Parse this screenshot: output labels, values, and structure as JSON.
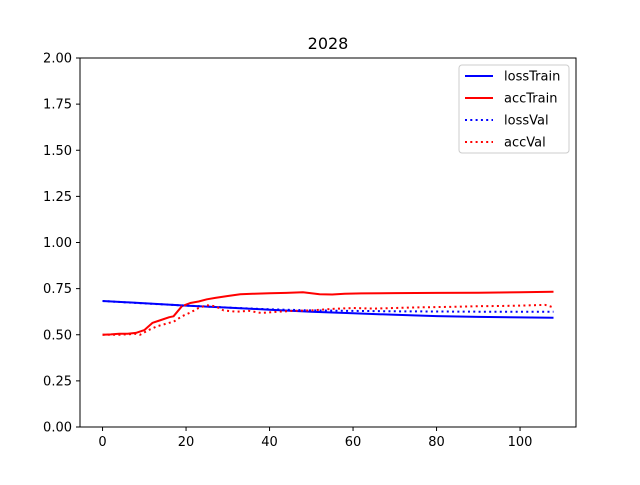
{
  "chart_data": {
    "type": "line",
    "title": "2028",
    "xlabel": "",
    "ylabel": "",
    "xlim": [
      -5.4,
      113.4
    ],
    "ylim": [
      0,
      2.0
    ],
    "x_ticks": [
      "0",
      "20",
      "40",
      "60",
      "80",
      "100"
    ],
    "x_tick_values": [
      0,
      20,
      40,
      60,
      80,
      100
    ],
    "y_ticks": [
      "0.00",
      "0.25",
      "0.50",
      "0.75",
      "1.00",
      "1.25",
      "1.50",
      "1.75",
      "2.00"
    ],
    "y_tick_values": [
      0,
      0.25,
      0.5,
      0.75,
      1.0,
      1.25,
      1.5,
      1.75,
      2.0
    ],
    "grid": false,
    "legend_position": "top-right",
    "series": [
      {
        "name": "lossTrain",
        "color": "#0000ff",
        "style": "solid",
        "points": [
          [
            0,
            0.683
          ],
          [
            10,
            0.671
          ],
          [
            20,
            0.658
          ],
          [
            30,
            0.647
          ],
          [
            40,
            0.636
          ],
          [
            50,
            0.625
          ],
          [
            60,
            0.616
          ],
          [
            70,
            0.608
          ],
          [
            80,
            0.601
          ],
          [
            90,
            0.597
          ],
          [
            100,
            0.594
          ],
          [
            108,
            0.592
          ]
        ]
      },
      {
        "name": "accTrain",
        "color": "#ff0000",
        "style": "solid",
        "points": [
          [
            0,
            0.5
          ],
          [
            2,
            0.502
          ],
          [
            4,
            0.505
          ],
          [
            6,
            0.505
          ],
          [
            8,
            0.51
          ],
          [
            10,
            0.525
          ],
          [
            12,
            0.565
          ],
          [
            14,
            0.58
          ],
          [
            16,
            0.595
          ],
          [
            17,
            0.6
          ],
          [
            19,
            0.655
          ],
          [
            21,
            0.672
          ],
          [
            23,
            0.68
          ],
          [
            25,
            0.692
          ],
          [
            27,
            0.7
          ],
          [
            30,
            0.71
          ],
          [
            33,
            0.72
          ],
          [
            36,
            0.722
          ],
          [
            40,
            0.725
          ],
          [
            44,
            0.727
          ],
          [
            48,
            0.73
          ],
          [
            50,
            0.725
          ],
          [
            52,
            0.72
          ],
          [
            55,
            0.718
          ],
          [
            58,
            0.722
          ],
          [
            62,
            0.724
          ],
          [
            70,
            0.726
          ],
          [
            80,
            0.727
          ],
          [
            90,
            0.728
          ],
          [
            100,
            0.73
          ],
          [
            108,
            0.733
          ]
        ]
      },
      {
        "name": "lossVal",
        "color": "#0000ff",
        "style": "dotted",
        "points": [
          [
            0,
            0.683
          ],
          [
            10,
            0.67
          ],
          [
            20,
            0.658
          ],
          [
            30,
            0.647
          ],
          [
            40,
            0.638
          ],
          [
            50,
            0.632
          ],
          [
            60,
            0.629
          ],
          [
            70,
            0.627
          ],
          [
            80,
            0.626
          ],
          [
            90,
            0.625
          ],
          [
            100,
            0.625
          ],
          [
            108,
            0.625
          ]
        ]
      },
      {
        "name": "accVal",
        "color": "#ff0000",
        "style": "dotted",
        "points": [
          [
            0,
            0.5
          ],
          [
            4,
            0.5
          ],
          [
            8,
            0.505
          ],
          [
            9,
            0.5
          ],
          [
            11,
            0.525
          ],
          [
            13,
            0.545
          ],
          [
            16,
            0.565
          ],
          [
            17,
            0.57
          ],
          [
            19,
            0.6
          ],
          [
            21,
            0.62
          ],
          [
            23,
            0.645
          ],
          [
            25,
            0.66
          ],
          [
            27,
            0.655
          ],
          [
            29,
            0.632
          ],
          [
            32,
            0.625
          ],
          [
            35,
            0.63
          ],
          [
            38,
            0.618
          ],
          [
            42,
            0.625
          ],
          [
            46,
            0.63
          ],
          [
            50,
            0.632
          ],
          [
            55,
            0.64
          ],
          [
            60,
            0.645
          ],
          [
            65,
            0.642
          ],
          [
            70,
            0.645
          ],
          [
            75,
            0.648
          ],
          [
            80,
            0.65
          ],
          [
            85,
            0.652
          ],
          [
            90,
            0.655
          ],
          [
            95,
            0.656
          ],
          [
            100,
            0.658
          ],
          [
            106,
            0.662
          ],
          [
            108,
            0.648
          ]
        ]
      }
    ]
  }
}
